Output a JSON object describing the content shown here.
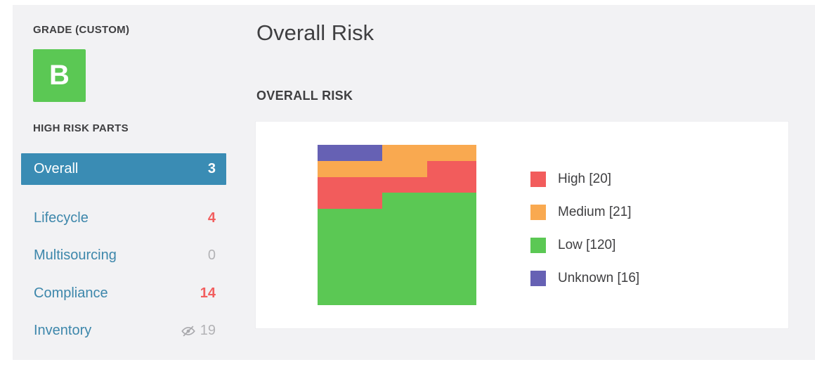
{
  "colors": {
    "panel_bg": "#f2f2f4",
    "card_bg": "#ffffff",
    "selected_item_bg": "#3a8cb4",
    "link_blue": "#3d87ab",
    "grade_green": "#5bc854",
    "count_red": "#f25f5f",
    "count_gray": "#b3b3b6",
    "text_dark": "#3f3f41"
  },
  "sidebar": {
    "grade_label": "GRADE (CUSTOM)",
    "grade_letter": "B",
    "section_label": "HIGH RISK PARTS",
    "items": [
      {
        "label": "Overall",
        "count": "3",
        "state": "selected",
        "count_color": "white"
      },
      {
        "label": "Lifecycle",
        "count": "4",
        "count_color": "red"
      },
      {
        "label": "Multisourcing",
        "count": "0",
        "count_color": "gray"
      },
      {
        "label": "Compliance",
        "count": "14",
        "count_color": "red"
      },
      {
        "label": "Inventory",
        "count": "19",
        "count_color": "gray",
        "icon": "eye-slash-icon"
      }
    ]
  },
  "main": {
    "page_title": "Overall Risk",
    "section_title": "OVERALL RISK"
  },
  "chart_data": {
    "type": "treemap",
    "title": "OVERALL RISK",
    "legend_position": "right",
    "series": [
      {
        "name": "High",
        "value": 20,
        "color": "#f25c5c",
        "legend_label": "High [20]"
      },
      {
        "name": "Medium",
        "value": 21,
        "color": "#f9a950",
        "legend_label": "Medium [21]"
      },
      {
        "name": "Low",
        "value": 120,
        "color": "#5bc854",
        "legend_label": "Low [120]"
      },
      {
        "name": "Unknown",
        "value": 16,
        "color": "#6661b4",
        "legend_label": "Unknown [16]"
      }
    ],
    "layout_segments": [
      {
        "series": "Unknown",
        "x": 0,
        "y": 0,
        "w": 40.5,
        "h": 10.1
      },
      {
        "series": "Medium",
        "x": 40.5,
        "y": 0,
        "w": 59.5,
        "h": 10.1
      },
      {
        "series": "Medium",
        "x": 0,
        "y": 10.1,
        "w": 69,
        "h": 9.9
      },
      {
        "series": "High",
        "x": 69,
        "y": 10.1,
        "w": 31,
        "h": 9.9
      },
      {
        "series": "High",
        "x": 0,
        "y": 20,
        "w": 100,
        "h": 10
      },
      {
        "series": "High",
        "x": 0,
        "y": 30,
        "w": 40.5,
        "h": 10
      },
      {
        "series": "Low",
        "x": 40.5,
        "y": 30,
        "w": 59.5,
        "h": 10
      },
      {
        "series": "Low",
        "x": 0,
        "y": 40,
        "w": 100,
        "h": 60
      }
    ]
  }
}
